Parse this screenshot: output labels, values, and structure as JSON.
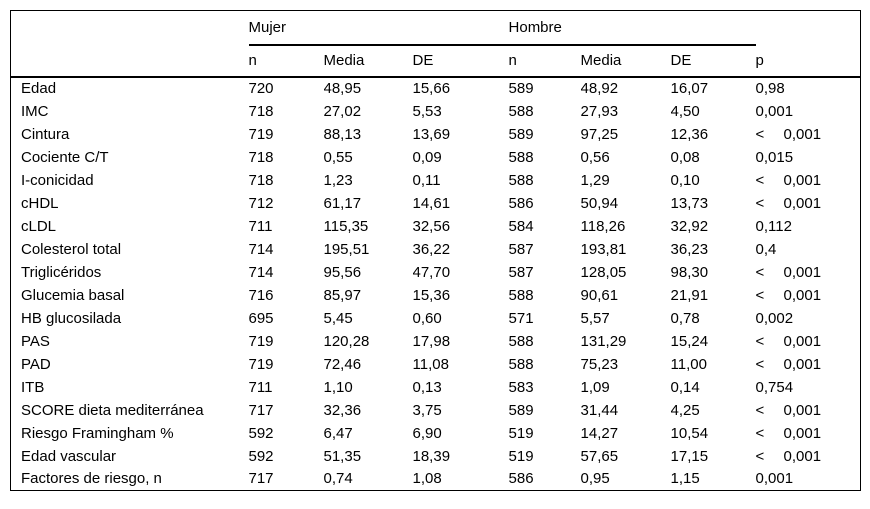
{
  "page": {
    "background_color": "#ffffff",
    "text_color": "#000000",
    "rule_color": "#000000"
  },
  "table": {
    "group_headers": [
      {
        "label": "Mujer",
        "span": 3
      },
      {
        "label": "Hombre",
        "span": 3
      }
    ],
    "sub_headers": [
      "n",
      "Media",
      "DE",
      "n",
      "Media",
      "DE",
      "p"
    ],
    "rows": [
      [
        "Edad",
        "720",
        "48,95",
        "15,66",
        "589",
        "48,92",
        "16,07",
        "0,98"
      ],
      [
        "IMC",
        "718",
        "27,02",
        "5,53",
        "588",
        "27,93",
        "4,50",
        "0,001"
      ],
      [
        "Cintura",
        "719",
        "88,13",
        "13,69",
        "589",
        "97,25",
        "12,36",
        "< 0,001"
      ],
      [
        "Cociente C/T",
        "718",
        "0,55",
        "0,09",
        "588",
        "0,56",
        "0,08",
        "0,015"
      ],
      [
        "I-conicidad",
        "718",
        "1,23",
        "0,11",
        "588",
        "1,29",
        "0,10",
        "< 0,001"
      ],
      [
        "cHDL",
        "712",
        "61,17",
        "14,61",
        "586",
        "50,94",
        "13,73",
        "< 0,001"
      ],
      [
        "cLDL",
        "711",
        "115,35",
        "32,56",
        "584",
        "118,26",
        "32,92",
        "0,112"
      ],
      [
        "Colesterol total",
        "714",
        "195,51",
        "36,22",
        "587",
        "193,81",
        "36,23",
        "0,4"
      ],
      [
        "Triglicéridos",
        "714",
        "95,56",
        "47,70",
        "587",
        "128,05",
        "98,30",
        "< 0,001"
      ],
      [
        "Glucemia basal",
        "716",
        "85,97",
        "15,36",
        "588",
        "90,61",
        "21,91",
        "< 0,001"
      ],
      [
        "HB glucosilada",
        "695",
        "5,45",
        "0,60",
        "571",
        "5,57",
        "0,78",
        "0,002"
      ],
      [
        "PAS",
        "719",
        "120,28",
        "17,98",
        "588",
        "131,29",
        "15,24",
        "< 0,001"
      ],
      [
        "PAD",
        "719",
        "72,46",
        "11,08",
        "588",
        "75,23",
        "11,00",
        "< 0,001"
      ],
      [
        "ITB",
        "711",
        "1,10",
        "0,13",
        "583",
        "1,09",
        "0,14",
        "0,754"
      ],
      [
        "SCORE dieta mediterránea",
        "717",
        "32,36",
        "3,75",
        "589",
        "31,44",
        "4,25",
        "< 0,001"
      ],
      [
        "Riesgo Framingham %",
        "592",
        "6,47",
        "6,90",
        "519",
        "14,27",
        "10,54",
        "< 0,001"
      ],
      [
        "Edad vascular",
        "592",
        "51,35",
        "18,39",
        "519",
        "57,65",
        "17,15",
        "< 0,001"
      ],
      [
        "Factores de riesgo, n",
        "717",
        "0,74",
        "1,08",
        "586",
        "0,95",
        "1,15",
        "0,001"
      ]
    ]
  }
}
